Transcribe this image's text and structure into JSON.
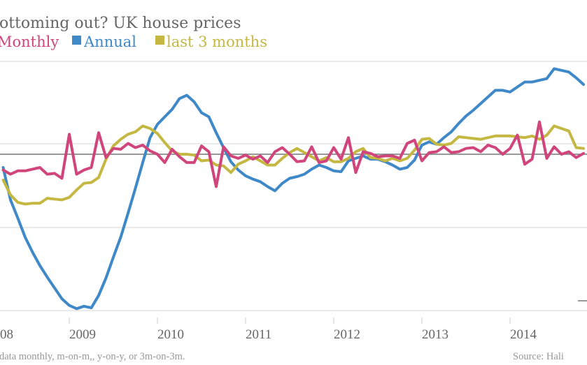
{
  "chart_data": {
    "type": "line",
    "title": "ottoming out? UK house prices",
    "legend": {
      "placement": "top-left",
      "entries": [
        "Monthly",
        "Annual",
        "last 3 months"
      ]
    },
    "colors": {
      "Monthly": "#d0457b",
      "Annual": "#3f89c8",
      "last 3 months": "#c4b842",
      "zero_line": "#777777",
      "grid": "#e3e3e3"
    },
    "x_tick_labels": [
      "08",
      "2009",
      "2010",
      "2011",
      "2012",
      "2013",
      "2014"
    ],
    "xlabel": "",
    "ylabel": "",
    "grid": true,
    "footnote": "data monthly, m-on-m,, y-on-y, or 3m-on-3m.",
    "source": "Source: Hali",
    "x": [
      "2008-04",
      "2008-05",
      "2008-06",
      "2008-07",
      "2008-08",
      "2008-09",
      "2008-10",
      "2008-11",
      "2008-12",
      "2009-01",
      "2009-02",
      "2009-03",
      "2009-04",
      "2009-05",
      "2009-06",
      "2009-07",
      "2009-08",
      "2009-09",
      "2009-10",
      "2009-11",
      "2009-12",
      "2010-01",
      "2010-02",
      "2010-03",
      "2010-04",
      "2010-05",
      "2010-06",
      "2010-07",
      "2010-08",
      "2010-09",
      "2010-10",
      "2010-11",
      "2010-12",
      "2011-01",
      "2011-02",
      "2011-03",
      "2011-04",
      "2011-05",
      "2011-06",
      "2011-07",
      "2011-08",
      "2011-09",
      "2011-10",
      "2011-11",
      "2011-12",
      "2012-01",
      "2012-02",
      "2012-03",
      "2012-04",
      "2012-05",
      "2012-06",
      "2012-07",
      "2012-08",
      "2012-09",
      "2012-10",
      "2012-11",
      "2012-12",
      "2013-01",
      "2013-02",
      "2013-03",
      "2013-04",
      "2013-05",
      "2013-06",
      "2013-07",
      "2013-08",
      "2013-09",
      "2013-10",
      "2013-11",
      "2013-12",
      "2014-01",
      "2014-02",
      "2014-03",
      "2014-04",
      "2014-05",
      "2014-06",
      "2014-07",
      "2014-08",
      "2014-09",
      "2014-10",
      "2014-11"
    ],
    "series": [
      {
        "name": "Monthly",
        "values": [
          -1.9,
          -2.4,
          -2.0,
          -2.0,
          -1.8,
          -1.6,
          -2.4,
          -2.3,
          -2.9,
          2.4,
          -2.4,
          -1.9,
          -1.6,
          2.6,
          -0.4,
          0.7,
          0.6,
          1.3,
          0.8,
          1.1,
          0.4,
          0.0,
          -1.0,
          0.6,
          -0.3,
          -1.0,
          -1.0,
          1.0,
          0.3,
          -3.9,
          0.9,
          -0.2,
          -0.5,
          -0.1,
          -0.6,
          -0.2,
          -1.0,
          0.3,
          0.8,
          0.0,
          -0.9,
          -0.8,
          0.9,
          -1.0,
          -0.8,
          0.8,
          -0.6,
          2.0,
          -2.2,
          0.3,
          0.1,
          -0.3,
          -0.2,
          -0.2,
          -0.5,
          1.3,
          1.7,
          -0.8,
          0.2,
          0.3,
          0.9,
          0.2,
          0.3,
          0.7,
          0.8,
          0.3,
          1.1,
          0.8,
          0.0,
          0.7,
          2.3,
          -1.2,
          -0.6,
          3.9,
          -0.5,
          0.9,
          0.0,
          0.3,
          -0.4,
          0.1
        ]
      },
      {
        "name": "Annual",
        "values": [
          -1.6,
          -5.5,
          -7.7,
          -10.0,
          -11.8,
          -13.4,
          -14.8,
          -16.1,
          -17.4,
          -18.2,
          -18.6,
          -18.3,
          -18.5,
          -17.0,
          -14.9,
          -12.4,
          -10.0,
          -7.1,
          -4.1,
          -1.0,
          2.0,
          3.6,
          4.5,
          5.4,
          6.7,
          7.1,
          6.3,
          5.0,
          4.5,
          2.6,
          0.8,
          -0.9,
          -1.9,
          -2.6,
          -3.0,
          -3.3,
          -3.9,
          -4.4,
          -3.5,
          -2.9,
          -2.7,
          -2.4,
          -1.8,
          -1.3,
          -1.6,
          -2.0,
          -2.1,
          -0.8,
          -0.5,
          -0.2,
          -0.6,
          -0.6,
          -0.9,
          -1.3,
          -1.8,
          -1.6,
          -0.7,
          1.1,
          1.5,
          1.2,
          2.0,
          2.7,
          3.7,
          4.6,
          5.3,
          6.1,
          6.9,
          7.7,
          7.7,
          7.5,
          8.1,
          8.7,
          8.7,
          8.9,
          9.1,
          10.3,
          10.1,
          9.9,
          9.2,
          8.4
        ]
      },
      {
        "name": "last 3 months",
        "values": [
          -3.1,
          -4.9,
          -5.8,
          -6.0,
          -5.9,
          -5.9,
          -5.3,
          -5.4,
          -5.5,
          -5.2,
          -4.3,
          -3.5,
          -3.4,
          -2.8,
          -0.6,
          1.0,
          1.8,
          2.4,
          2.7,
          3.4,
          3.1,
          2.5,
          1.4,
          0.4,
          0.0,
          0.0,
          -0.1,
          -0.8,
          -0.7,
          -1.3,
          -1.4,
          -2.2,
          -1.2,
          -0.8,
          -0.3,
          -0.8,
          -1.3,
          -1.3,
          -0.5,
          0.2,
          0.7,
          0.2,
          -0.3,
          -0.8,
          -0.4,
          -0.9,
          -0.9,
          -0.5,
          0.3,
          0.7,
          -0.4,
          -0.5,
          -0.8,
          -0.5,
          -0.8,
          -0.5,
          0.5,
          1.8,
          1.9,
          1.2,
          1.1,
          1.3,
          2.1,
          2.0,
          1.9,
          1.8,
          2.0,
          2.2,
          2.2,
          2.2,
          2.1,
          2.0,
          2.2,
          1.8,
          2.3,
          3.4,
          3.1,
          2.8,
          0.8,
          0.7
        ]
      }
    ]
  }
}
